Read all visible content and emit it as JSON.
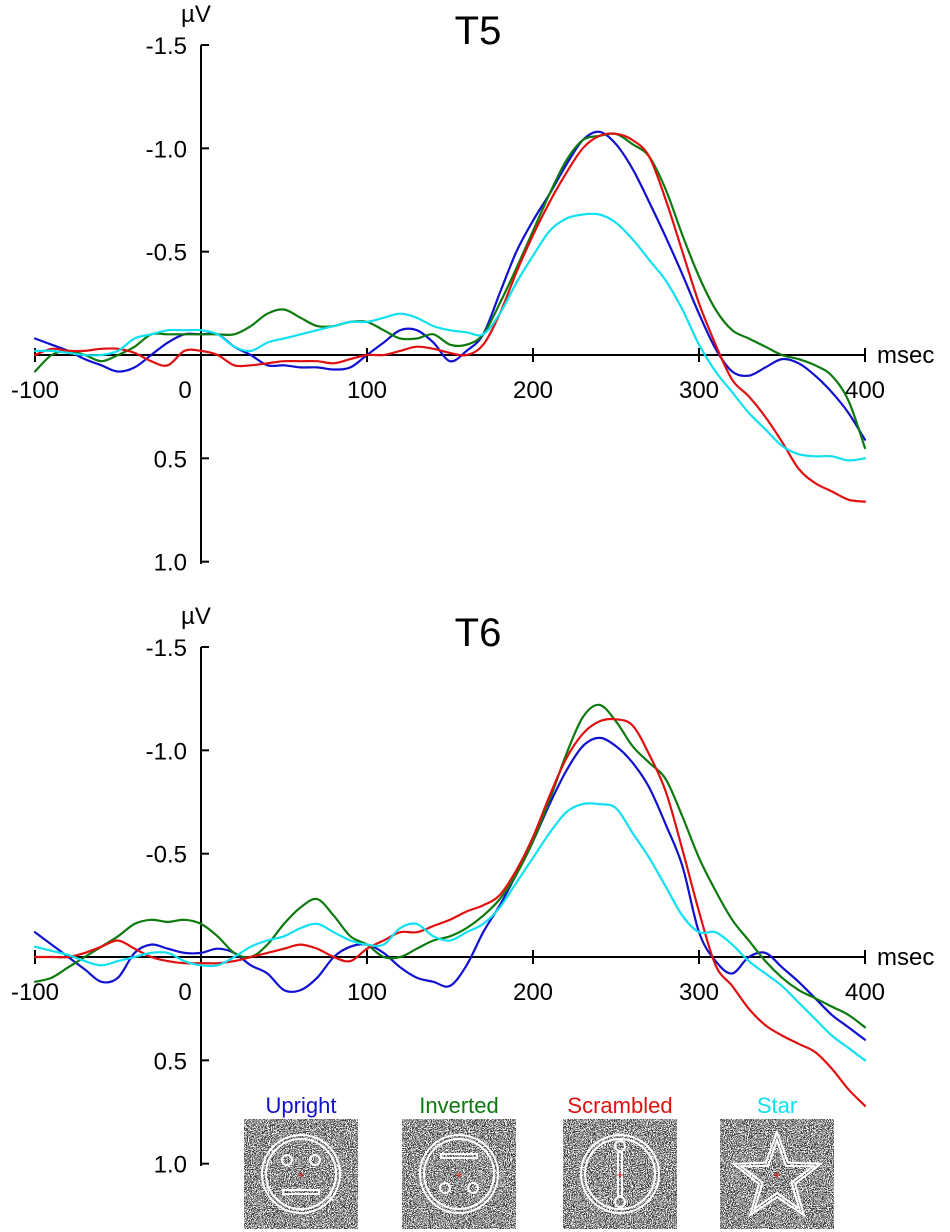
{
  "chart_data": [
    {
      "type": "line",
      "title": "T5",
      "ylabel": "µV",
      "xlabel": "msec",
      "xlim": [
        -100,
        400
      ],
      "ylim": [
        1.0,
        -1.5
      ],
      "y_inverted": true,
      "xticks": [
        -100,
        0,
        100,
        200,
        300,
        400
      ],
      "xtick_labels": [
        "-100",
        "0",
        "100",
        "200",
        "300",
        "400"
      ],
      "yticks": [
        -1.5,
        -1.0,
        -0.5,
        0.5,
        1.0
      ],
      "ytick_labels": [
        "-1.5",
        "-1.0",
        "-0.5",
        "0.5",
        "1.0"
      ],
      "x": [
        -100,
        -90,
        -80,
        -70,
        -60,
        -50,
        -40,
        -30,
        -20,
        -10,
        0,
        10,
        20,
        30,
        40,
        50,
        60,
        70,
        80,
        90,
        100,
        110,
        120,
        130,
        140,
        150,
        160,
        170,
        180,
        190,
        200,
        210,
        220,
        230,
        240,
        250,
        260,
        270,
        280,
        290,
        300,
        310,
        320,
        330,
        340,
        350,
        360,
        370,
        380,
        390,
        400
      ],
      "series": [
        {
          "name": "Upright",
          "color": "#1010d0",
          "values": [
            -0.08,
            -0.05,
            -0.02,
            0.02,
            0.05,
            0.08,
            0.06,
            0.0,
            -0.06,
            -0.1,
            -0.1,
            -0.1,
            -0.04,
            0.0,
            0.05,
            0.05,
            0.06,
            0.06,
            0.07,
            0.06,
            0.0,
            -0.06,
            -0.12,
            -0.12,
            -0.06,
            0.03,
            -0.02,
            -0.1,
            -0.3,
            -0.5,
            -0.65,
            -0.78,
            -0.92,
            -1.04,
            -1.08,
            -1.02,
            -0.9,
            -0.74,
            -0.57,
            -0.39,
            -0.2,
            -0.03,
            0.08,
            0.1,
            0.06,
            0.02,
            0.04,
            0.1,
            0.18,
            0.28,
            0.41
          ]
        },
        {
          "name": "Inverted",
          "color": "#0d7a10",
          "values": [
            0.08,
            0.0,
            -0.02,
            0.0,
            0.03,
            0.0,
            -0.04,
            -0.1,
            -0.1,
            -0.1,
            -0.1,
            -0.1,
            -0.1,
            -0.14,
            -0.2,
            -0.22,
            -0.18,
            -0.14,
            -0.14,
            -0.16,
            -0.16,
            -0.12,
            -0.08,
            -0.08,
            -0.1,
            -0.05,
            -0.05,
            -0.1,
            -0.25,
            -0.42,
            -0.6,
            -0.78,
            -0.94,
            -1.04,
            -1.06,
            -1.07,
            -1.02,
            -0.96,
            -0.8,
            -0.58,
            -0.38,
            -0.22,
            -0.12,
            -0.08,
            -0.04,
            0.0,
            0.02,
            0.05,
            0.1,
            0.22,
            0.45
          ]
        },
        {
          "name": "Scrambled",
          "color": "#e01010",
          "values": [
            0.0,
            -0.03,
            -0.02,
            -0.02,
            -0.03,
            -0.03,
            -0.01,
            0.03,
            0.05,
            -0.02,
            -0.02,
            0.0,
            0.05,
            0.05,
            0.04,
            0.03,
            0.03,
            0.03,
            0.04,
            0.02,
            0.0,
            0.0,
            -0.02,
            -0.04,
            -0.03,
            -0.01,
            0.0,
            -0.05,
            -0.2,
            -0.4,
            -0.58,
            -0.74,
            -0.88,
            -1.0,
            -1.06,
            -1.07,
            -1.04,
            -0.96,
            -0.75,
            -0.5,
            -0.25,
            -0.05,
            0.12,
            0.2,
            0.3,
            0.42,
            0.55,
            0.62,
            0.66,
            0.7,
            0.71
          ]
        },
        {
          "name": "Star",
          "color": "#10e0f0",
          "values": [
            -0.02,
            -0.02,
            -0.01,
            0.0,
            0.0,
            -0.02,
            -0.08,
            -0.1,
            -0.12,
            -0.12,
            -0.12,
            -0.1,
            -0.04,
            -0.02,
            -0.06,
            -0.08,
            -0.1,
            -0.12,
            -0.14,
            -0.16,
            -0.16,
            -0.18,
            -0.2,
            -0.18,
            -0.14,
            -0.12,
            -0.11,
            -0.1,
            -0.2,
            -0.35,
            -0.48,
            -0.6,
            -0.66,
            -0.68,
            -0.68,
            -0.64,
            -0.56,
            -0.46,
            -0.36,
            -0.22,
            -0.05,
            0.08,
            0.18,
            0.28,
            0.36,
            0.44,
            0.48,
            0.49,
            0.49,
            0.51,
            0.5
          ]
        }
      ]
    },
    {
      "type": "line",
      "title": "T6",
      "ylabel": "µV",
      "xlabel": "msec",
      "xlim": [
        -100,
        400
      ],
      "ylim": [
        1.0,
        -1.5
      ],
      "y_inverted": true,
      "xticks": [
        -100,
        0,
        100,
        200,
        300,
        400
      ],
      "xtick_labels": [
        "-100",
        "0",
        "100",
        "200",
        "300",
        "400"
      ],
      "yticks": [
        -1.5,
        -1.0,
        -0.5,
        0.5,
        1.0
      ],
      "ytick_labels": [
        "-1.5",
        "-1.0",
        "-0.5",
        "0.5",
        "1.0"
      ],
      "x": [
        -100,
        -90,
        -80,
        -70,
        -60,
        -50,
        -40,
        -30,
        -20,
        -10,
        0,
        10,
        20,
        30,
        40,
        50,
        60,
        70,
        80,
        90,
        100,
        110,
        120,
        130,
        140,
        150,
        160,
        170,
        180,
        190,
        200,
        210,
        220,
        230,
        240,
        250,
        260,
        270,
        280,
        290,
        300,
        310,
        320,
        330,
        340,
        350,
        360,
        370,
        380,
        390,
        400
      ],
      "series": [
        {
          "name": "Upright",
          "color": "#1010d0",
          "values": [
            -0.12,
            -0.06,
            0.0,
            0.06,
            0.12,
            0.1,
            -0.02,
            -0.06,
            -0.04,
            -0.02,
            -0.02,
            -0.04,
            -0.02,
            0.04,
            0.08,
            0.16,
            0.16,
            0.1,
            0.0,
            -0.05,
            -0.06,
            -0.02,
            0.05,
            0.1,
            0.12,
            0.14,
            0.04,
            -0.12,
            -0.25,
            -0.4,
            -0.56,
            -0.74,
            -0.9,
            -1.02,
            -1.06,
            -1.02,
            -0.94,
            -0.82,
            -0.64,
            -0.44,
            -0.12,
            0.02,
            0.08,
            0.0,
            -0.02,
            0.05,
            0.12,
            0.2,
            0.28,
            0.34,
            0.4
          ]
        },
        {
          "name": "Inverted",
          "color": "#0d7a10",
          "values": [
            0.12,
            0.1,
            0.05,
            0.0,
            -0.05,
            -0.1,
            -0.16,
            -0.18,
            -0.17,
            -0.18,
            -0.16,
            -0.1,
            -0.02,
            0.0,
            -0.06,
            -0.16,
            -0.24,
            -0.28,
            -0.2,
            -0.1,
            -0.06,
            0.0,
            0.0,
            -0.04,
            -0.08,
            -0.1,
            -0.14,
            -0.2,
            -0.28,
            -0.4,
            -0.56,
            -0.76,
            -0.98,
            -1.16,
            -1.22,
            -1.14,
            -1.02,
            -0.94,
            -0.86,
            -0.68,
            -0.48,
            -0.32,
            -0.18,
            -0.08,
            0.02,
            0.1,
            0.16,
            0.2,
            0.24,
            0.28,
            0.34
          ]
        },
        {
          "name": "Scrambled",
          "color": "#e01010",
          "values": [
            0.0,
            0.0,
            0.0,
            -0.02,
            -0.05,
            -0.08,
            -0.04,
            0.0,
            0.02,
            0.03,
            0.03,
            0.03,
            0.02,
            0.0,
            -0.02,
            -0.04,
            -0.06,
            -0.04,
            0.0,
            0.02,
            -0.04,
            -0.08,
            -0.12,
            -0.12,
            -0.15,
            -0.18,
            -0.22,
            -0.25,
            -0.3,
            -0.42,
            -0.58,
            -0.78,
            -0.96,
            -1.08,
            -1.14,
            -1.15,
            -1.12,
            -0.98,
            -0.8,
            -0.52,
            -0.22,
            0.04,
            0.14,
            0.25,
            0.33,
            0.38,
            0.42,
            0.46,
            0.54,
            0.64,
            0.72
          ]
        },
        {
          "name": "Star",
          "color": "#10e0f0",
          "values": [
            -0.05,
            -0.03,
            -0.01,
            0.02,
            0.04,
            0.02,
            0.0,
            -0.02,
            -0.02,
            0.02,
            0.04,
            0.04,
            0.0,
            -0.05,
            -0.08,
            -0.1,
            -0.14,
            -0.16,
            -0.12,
            -0.08,
            -0.06,
            -0.06,
            -0.14,
            -0.16,
            -0.1,
            -0.08,
            -0.12,
            -0.16,
            -0.24,
            -0.36,
            -0.48,
            -0.6,
            -0.7,
            -0.74,
            -0.74,
            -0.72,
            -0.6,
            -0.48,
            -0.34,
            -0.2,
            -0.12,
            -0.12,
            -0.06,
            0.02,
            0.08,
            0.14,
            0.22,
            0.3,
            0.38,
            0.44,
            0.5
          ]
        }
      ]
    }
  ],
  "legend": [
    {
      "label": "Upright",
      "color": "#1010d0",
      "icon": "face-upright-icon"
    },
    {
      "label": "Inverted",
      "color": "#0d7a10",
      "icon": "face-inverted-icon"
    },
    {
      "label": "Scrambled",
      "color": "#e01010",
      "icon": "face-scrambled-icon"
    },
    {
      "label": "Star",
      "color": "#10e0f0",
      "icon": "star-stimulus-icon"
    }
  ]
}
